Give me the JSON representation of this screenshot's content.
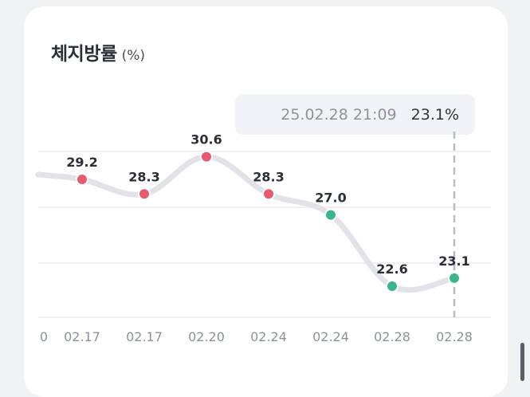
{
  "title": "체지방률",
  "unit": "(%)",
  "tooltip": {
    "datetime": "25.02.28 21:09",
    "value": "23.1%"
  },
  "colors": {
    "above": "#e85a6e",
    "below": "#3bb58e",
    "line": "#e1e3e8",
    "grid": "#ececef"
  },
  "chart_data": {
    "type": "line",
    "title": "체지방률",
    "unit": "(%)",
    "categories": [
      "0",
      "02.17",
      "02.17",
      "02.20",
      "02.24",
      "02.24",
      "02.28",
      "02.28"
    ],
    "values": [
      null,
      29.2,
      28.3,
      30.6,
      28.3,
      27.0,
      22.6,
      23.1
    ],
    "value_labels": [
      "",
      "29.2",
      "28.3",
      "30.6",
      "28.3",
      "27.0",
      "22.6",
      "23.1"
    ],
    "point_colors": [
      "",
      "above",
      "above",
      "above",
      "above",
      "below",
      "below",
      "below"
    ],
    "selected_index": 7,
    "grid": true,
    "gridline_values": [
      31,
      28,
      25,
      22
    ]
  }
}
